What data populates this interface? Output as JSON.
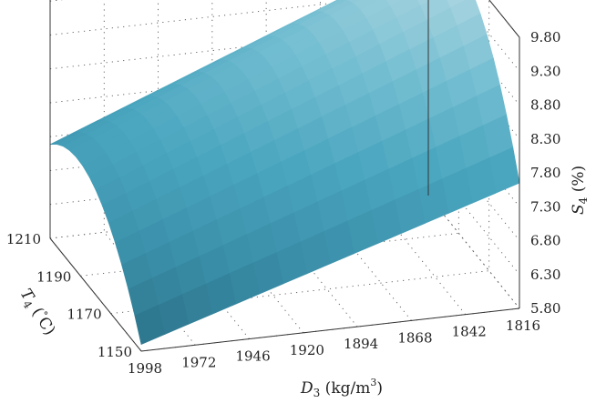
{
  "chart_data": {
    "type": "surface3d",
    "title": "",
    "x_axis": {
      "variable": "D",
      "subscript": "3",
      "unit_prefix": " (kg/m",
      "unit_power": "3",
      "unit_suffix": ")",
      "ticks": [
        "1998",
        "1972",
        "1946",
        "1920",
        "1894",
        "1868",
        "1842",
        "1816"
      ],
      "range": [
        1816,
        1998
      ]
    },
    "y_axis": {
      "variable": "T",
      "subscript": "4",
      "unit_prefix": " (",
      "unit_degree": "°",
      "unit_suffix": "C)",
      "ticks": [
        "1150",
        "1170",
        "1190",
        "1210"
      ],
      "range": [
        1150,
        1210
      ]
    },
    "z_axis": {
      "variable": "S",
      "subscript": "4",
      "unit": " (%)",
      "ticks": [
        "5.80",
        "6.30",
        "6.80",
        "7.30",
        "7.80",
        "8.30",
        "8.80",
        "9.30",
        "9.80"
      ],
      "range": [
        5.8,
        9.8
      ]
    },
    "surface": {
      "description_of_corners": {
        "D1998_T1150": 5.9,
        "D1816_T1150": 7.65,
        "D1998_T1210": 7.45,
        "D1816_T1210": 9.55
      },
      "peak": {
        "D": 1816,
        "T": 1192,
        "S": 9.75
      },
      "colormap": [
        "#2a6f86",
        "#3a8ea8",
        "#4aa6bf",
        "#76bfd2",
        "#b4d9e3"
      ],
      "grid_on": true
    }
  }
}
